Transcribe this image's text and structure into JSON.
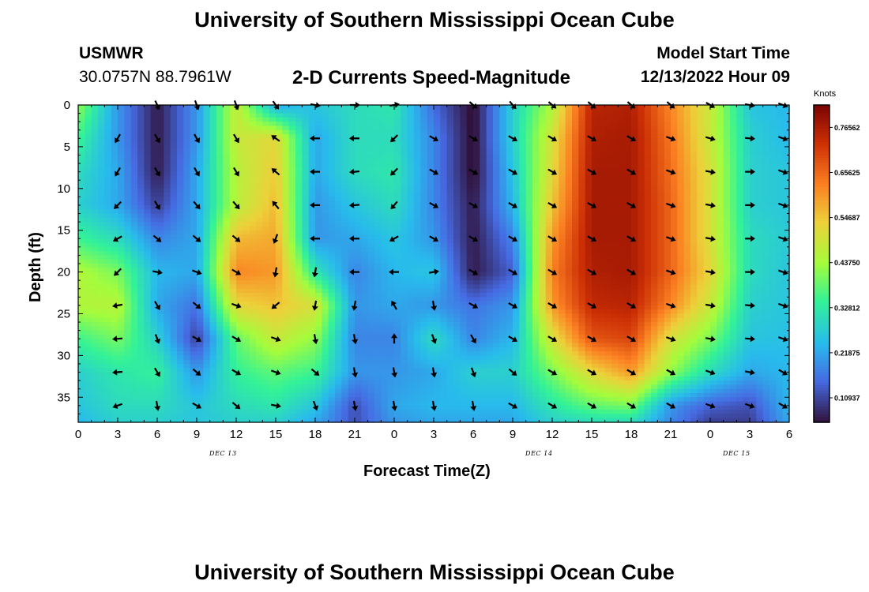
{
  "page_title": "University of Southern Mississippi Ocean Cube",
  "station": {
    "name": "USMWR",
    "coords": "30.0757N  88.7961W"
  },
  "model": {
    "label": "Model Start Time",
    "value": "12/13/2022 Hour 09"
  },
  "colorbar": {
    "unit": "Knots",
    "ticks": [
      "0.76562",
      "0.65625",
      "0.54687",
      "0.43750",
      "0.32812",
      "0.21875",
      "0.10937"
    ],
    "tick_values": [
      0.76562,
      0.65625,
      0.54687,
      0.4375,
      0.32812,
      0.21875,
      0.10937
    ],
    "range": [
      0.05,
      0.82
    ]
  },
  "day_labels": [
    "DEC 13",
    "DEC 14",
    "DEC 15"
  ],
  "chart_data": {
    "type": "heatmap",
    "title": "2-D Currents Speed-Magnitude",
    "xlabel": "Forecast Time(Z)",
    "ylabel": "Depth (ft)",
    "xlim": [
      0,
      54
    ],
    "ylim": [
      0,
      38
    ],
    "x_tick_values": [
      0,
      3,
      6,
      9,
      12,
      15,
      18,
      21,
      24,
      27,
      30,
      33,
      36,
      39,
      42,
      45,
      48,
      51,
      54
    ],
    "x_tick_labels": [
      "0",
      "3",
      "6",
      "9",
      "12",
      "15",
      "18",
      "21",
      "0",
      "3",
      "6",
      "9",
      "12",
      "15",
      "18",
      "21",
      "0",
      "3",
      "6"
    ],
    "y_tick_values": [
      0,
      5,
      10,
      15,
      20,
      25,
      30,
      35
    ],
    "y_tick_labels": [
      "0",
      "5",
      "10",
      "15",
      "20",
      "25",
      "30",
      "35"
    ],
    "day_positions": [
      11,
      35,
      50
    ],
    "grid_x": [
      0,
      3,
      6,
      9,
      12,
      15,
      18,
      21,
      24,
      27,
      30,
      33,
      36,
      39,
      42,
      45,
      48,
      51,
      54
    ],
    "grid_depth": [
      0,
      4,
      8,
      12,
      16,
      20,
      24,
      28,
      32,
      36,
      38
    ],
    "speed_knots": [
      [
        0.42,
        0.2,
        0.06,
        0.2,
        0.48,
        0.22,
        0.26,
        0.3,
        0.32,
        0.15,
        0.04,
        0.28,
        0.45,
        0.75,
        0.76,
        0.62,
        0.48,
        0.26,
        0.24
      ],
      [
        0.35,
        0.2,
        0.06,
        0.2,
        0.48,
        0.52,
        0.22,
        0.3,
        0.3,
        0.18,
        0.04,
        0.28,
        0.5,
        0.76,
        0.77,
        0.64,
        0.48,
        0.28,
        0.24
      ],
      [
        0.3,
        0.22,
        0.06,
        0.22,
        0.46,
        0.54,
        0.22,
        0.3,
        0.32,
        0.18,
        0.04,
        0.26,
        0.52,
        0.77,
        0.77,
        0.65,
        0.5,
        0.28,
        0.26
      ],
      [
        0.28,
        0.22,
        0.1,
        0.22,
        0.46,
        0.56,
        0.2,
        0.26,
        0.3,
        0.18,
        0.06,
        0.24,
        0.55,
        0.77,
        0.77,
        0.66,
        0.5,
        0.28,
        0.26
      ],
      [
        0.35,
        0.3,
        0.18,
        0.22,
        0.56,
        0.58,
        0.2,
        0.22,
        0.26,
        0.2,
        0.06,
        0.18,
        0.6,
        0.77,
        0.77,
        0.66,
        0.5,
        0.3,
        0.27
      ],
      [
        0.45,
        0.4,
        0.24,
        0.22,
        0.62,
        0.6,
        0.32,
        0.18,
        0.24,
        0.26,
        0.06,
        0.14,
        0.63,
        0.76,
        0.77,
        0.66,
        0.52,
        0.3,
        0.26
      ],
      [
        0.45,
        0.46,
        0.22,
        0.16,
        0.52,
        0.55,
        0.5,
        0.2,
        0.22,
        0.2,
        0.16,
        0.2,
        0.6,
        0.74,
        0.75,
        0.62,
        0.48,
        0.28,
        0.26
      ],
      [
        0.35,
        0.4,
        0.28,
        0.1,
        0.38,
        0.48,
        0.42,
        0.18,
        0.18,
        0.3,
        0.18,
        0.24,
        0.5,
        0.68,
        0.7,
        0.5,
        0.4,
        0.26,
        0.25
      ],
      [
        0.28,
        0.32,
        0.34,
        0.2,
        0.34,
        0.38,
        0.35,
        0.2,
        0.2,
        0.22,
        0.28,
        0.28,
        0.4,
        0.52,
        0.6,
        0.42,
        0.3,
        0.22,
        0.24
      ],
      [
        0.26,
        0.3,
        0.3,
        0.26,
        0.3,
        0.32,
        0.26,
        0.12,
        0.22,
        0.24,
        0.24,
        0.24,
        0.32,
        0.38,
        0.4,
        0.2,
        0.14,
        0.12,
        0.24
      ],
      [
        0.24,
        0.28,
        0.28,
        0.26,
        0.28,
        0.28,
        0.22,
        0.12,
        0.2,
        0.22,
        0.22,
        0.22,
        0.28,
        0.3,
        0.3,
        0.18,
        0.1,
        0.1,
        0.22
      ]
    ],
    "arrow_angles_deg": [
      [
        null,
        null,
        65,
        70,
        70,
        55,
        10,
        0,
        -10,
        null,
        40,
        50,
        40,
        40,
        40,
        40,
        30,
        10,
        20
      ],
      [
        null,
        120,
        60,
        60,
        60,
        -145,
        180,
        180,
        135,
        30,
        30,
        30,
        30,
        30,
        30,
        20,
        15,
        5,
        20
      ],
      [
        null,
        120,
        60,
        60,
        60,
        -140,
        180,
        175,
        135,
        30,
        30,
        30,
        30,
        30,
        30,
        20,
        10,
        0,
        20
      ],
      [
        null,
        135,
        60,
        50,
        50,
        -130,
        180,
        175,
        130,
        30,
        30,
        30,
        30,
        30,
        30,
        20,
        10,
        0,
        20
      ],
      [
        null,
        150,
        40,
        40,
        40,
        110,
        180,
        180,
        150,
        30,
        30,
        30,
        30,
        30,
        30,
        20,
        10,
        0,
        20
      ],
      [
        null,
        135,
        10,
        20,
        30,
        100,
        100,
        180,
        180,
        -10,
        30,
        30,
        30,
        30,
        30,
        20,
        10,
        0,
        20
      ],
      [
        null,
        170,
        60,
        40,
        20,
        140,
        100,
        100,
        -120,
        80,
        30,
        30,
        30,
        30,
        30,
        20,
        10,
        5,
        20
      ],
      [
        null,
        175,
        70,
        30,
        30,
        20,
        80,
        80,
        -90,
        70,
        60,
        30,
        30,
        30,
        30,
        20,
        10,
        5,
        20
      ],
      [
        null,
        175,
        60,
        40,
        30,
        20,
        40,
        80,
        80,
        80,
        70,
        40,
        30,
        30,
        30,
        30,
        20,
        10,
        30
      ],
      [
        null,
        160,
        80,
        30,
        40,
        10,
        70,
        80,
        80,
        80,
        80,
        30,
        30,
        30,
        30,
        30,
        20,
        20,
        30
      ]
    ]
  }
}
